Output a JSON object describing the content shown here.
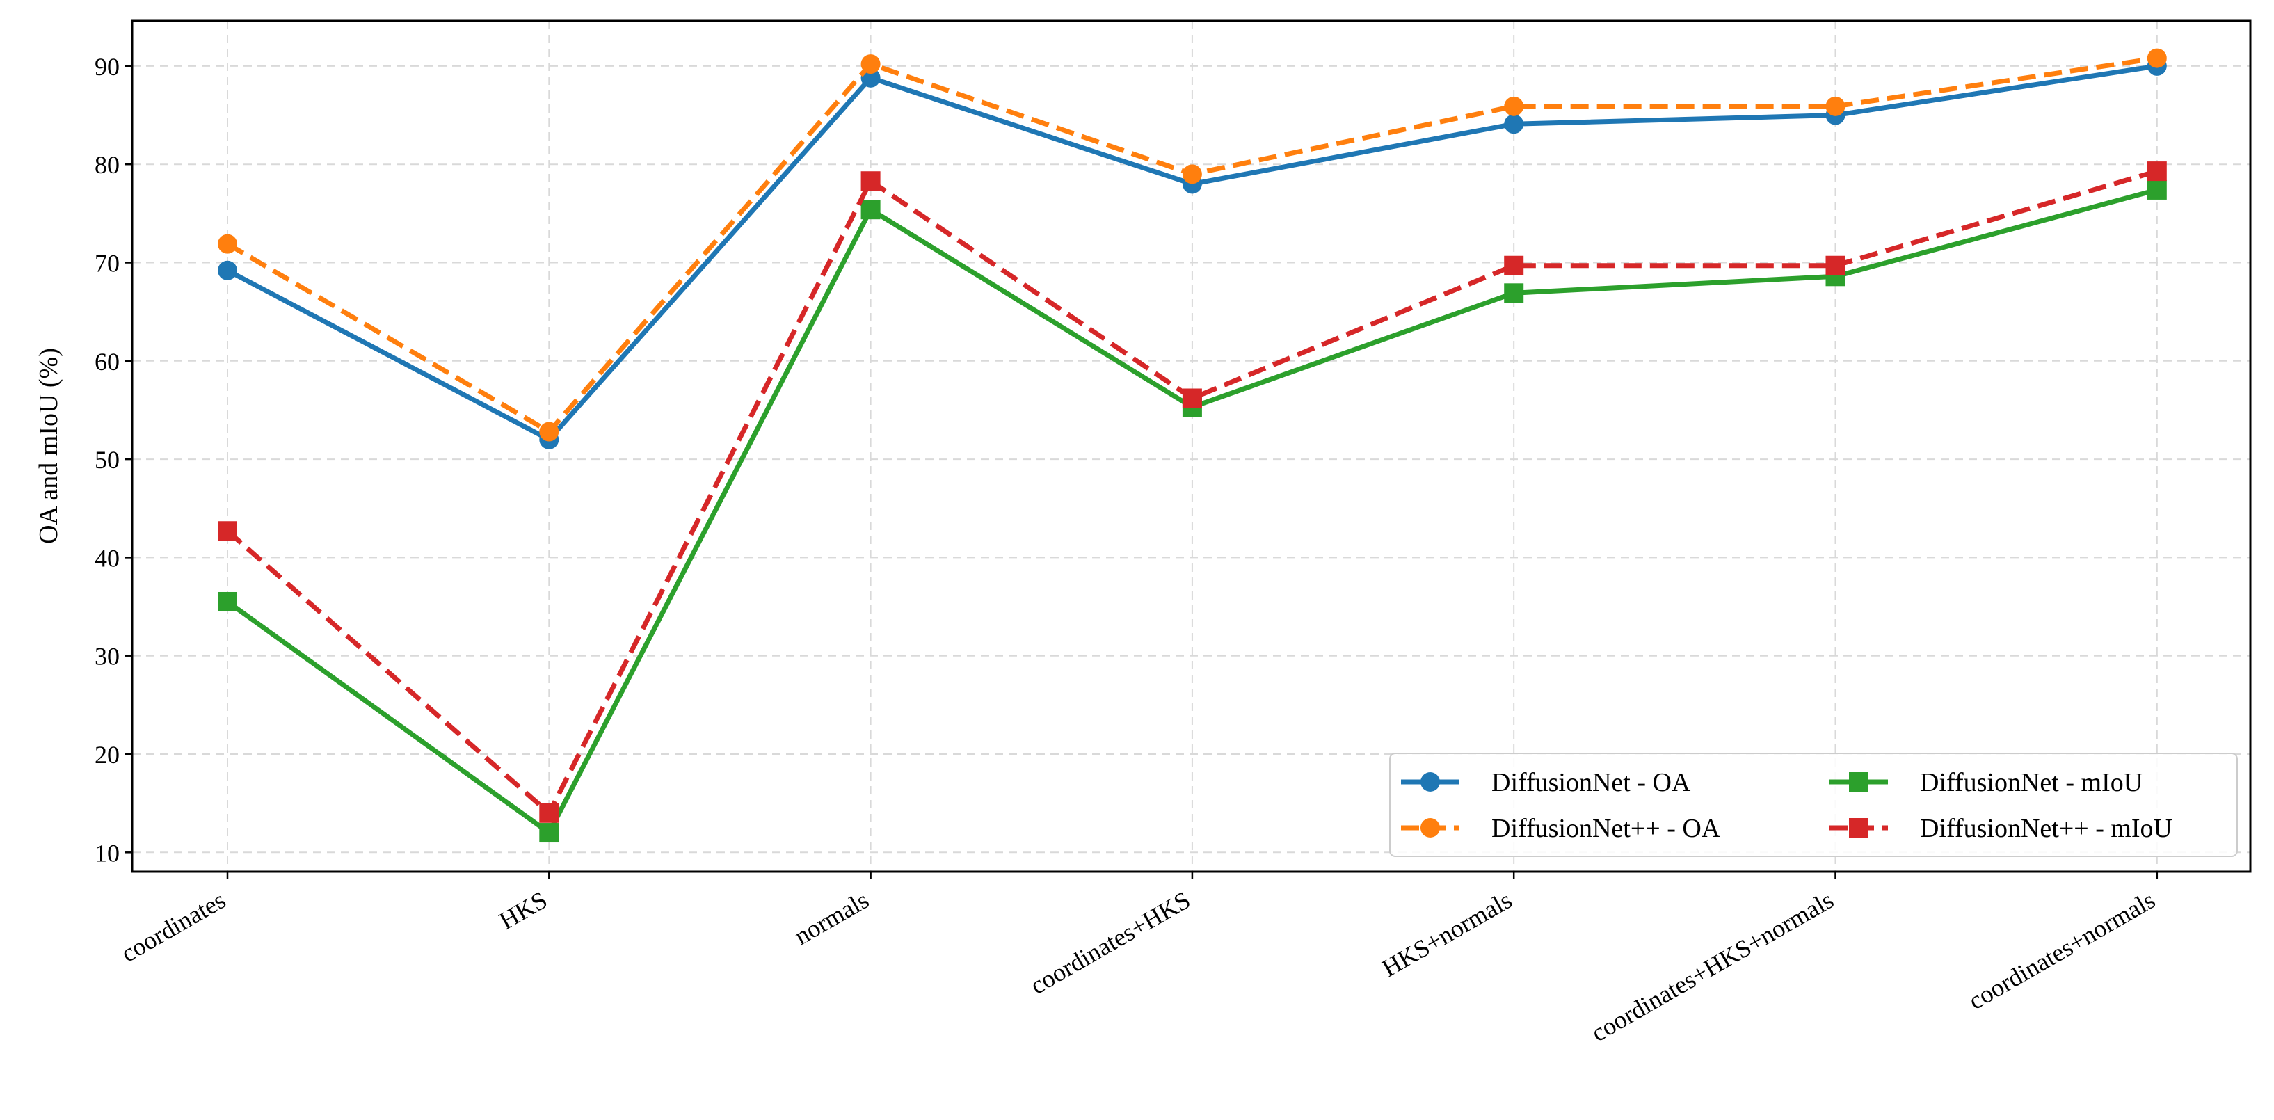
{
  "chart_data": {
    "type": "line",
    "title": "",
    "xlabel": "",
    "ylabel": "OA and mIoU (%)",
    "categories": [
      "coordinates",
      "HKS",
      "normals",
      "coordinates+HKS",
      "HKS+normals",
      "coordinates+HKS+normals",
      "coordinates+normals"
    ],
    "ylim": [
      8,
      94
    ],
    "yticks": [
      10,
      20,
      30,
      40,
      50,
      60,
      70,
      80,
      90
    ],
    "grid": true,
    "legend_position": "lower-right",
    "series": [
      {
        "name": "DiffusionNet - OA",
        "values": [
          69.2,
          52.0,
          88.8,
          78.0,
          84.1,
          85.0,
          90.0
        ],
        "color": "#1f77b4",
        "dash": "solid",
        "marker": "circle"
      },
      {
        "name": "DiffusionNet++ - OA",
        "values": [
          71.9,
          52.8,
          90.2,
          79.0,
          85.9,
          85.9,
          90.8
        ],
        "color": "#ff7f0e",
        "dash": "dashed",
        "marker": "circle"
      },
      {
        "name": "DiffusionNet - mIoU",
        "values": [
          35.5,
          12.0,
          75.4,
          55.3,
          66.9,
          68.6,
          77.4
        ],
        "color": "#2ca02c",
        "dash": "solid",
        "marker": "square"
      },
      {
        "name": "DiffusionNet++ - mIoU",
        "values": [
          42.7,
          14.0,
          78.3,
          56.2,
          69.7,
          69.7,
          79.3
        ],
        "color": "#d62728",
        "dash": "dashed",
        "marker": "square"
      }
    ]
  }
}
